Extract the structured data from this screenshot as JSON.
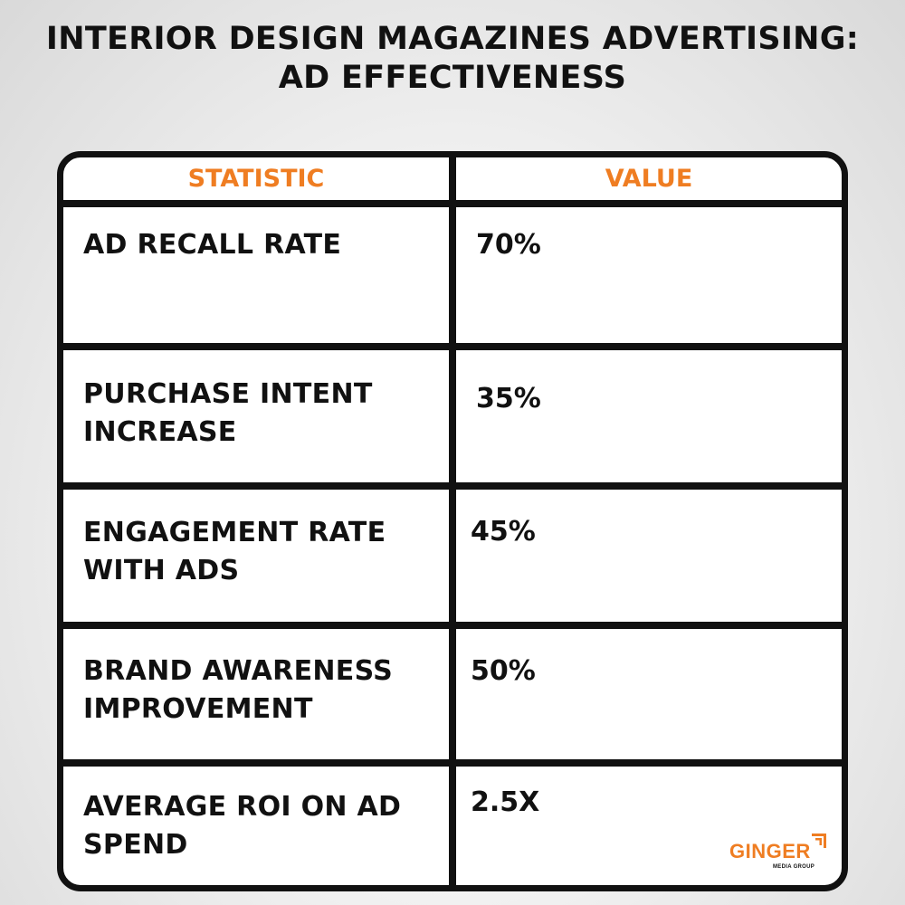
{
  "title": "INTERIOR DESIGN MAGAZINES ADVERTISING: AD EFFECTIVENESS",
  "table": {
    "headers": {
      "statistic": "STATISTIC",
      "value": "VALUE"
    },
    "rows": [
      {
        "statistic": "AD RECALL RATE",
        "value": "70%"
      },
      {
        "statistic": "PURCHASE INTENT INCREASE",
        "value": "35%"
      },
      {
        "statistic": "ENGAGEMENT RATE WITH ADS",
        "value": "45%"
      },
      {
        "statistic": "BRAND AWARENESS IMPROVEMENT",
        "value": "50%"
      },
      {
        "statistic": "AVERAGE ROI ON AD SPEND",
        "value": "2.5X"
      }
    ]
  },
  "logo": {
    "name": "GINGER",
    "tagline": "MEDIA GROUP",
    "icon": "ginger-bars-icon"
  },
  "colors": {
    "accent": "#ef7d22",
    "text": "#111111",
    "border": "#111111",
    "table_background": "#ffffff"
  }
}
